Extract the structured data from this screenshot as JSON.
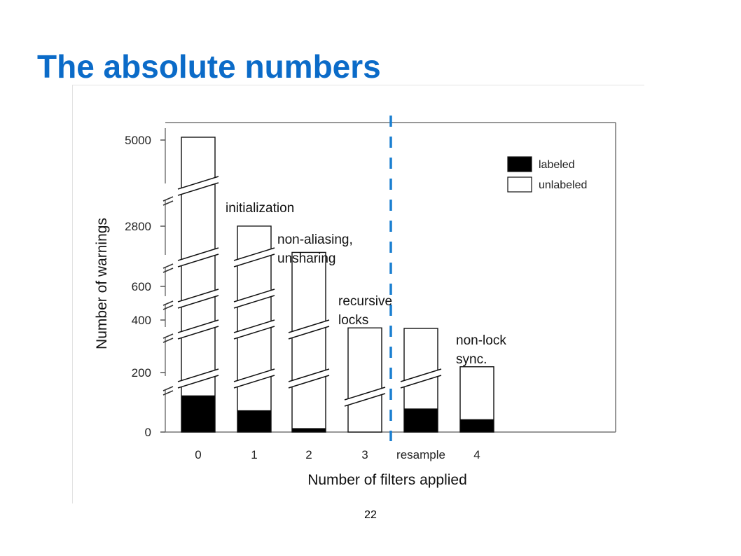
{
  "slide": {
    "title": "The absolute numbers",
    "page_number": "22"
  },
  "colors": {
    "title": "#0b6bc8",
    "divider": "#1a7fd0",
    "labeled": "#000000",
    "unlabeled": "#ffffff"
  },
  "chart_data": {
    "type": "bar",
    "stacked": true,
    "title": "",
    "xlabel": "Number of filters applied",
    "ylabel": "Number of warnings",
    "categories": [
      "0",
      "1",
      "2",
      "3",
      "resample",
      "4"
    ],
    "y_axis": {
      "broken": true,
      "tick_labels": [
        "0",
        "200",
        "400",
        "600",
        "2800",
        "5000"
      ]
    },
    "series": [
      {
        "name": "labeled",
        "values": [
          122,
          72,
          12,
          0,
          78,
          42
        ]
      },
      {
        "name": "unlabeled",
        "values": [
          4950,
          2730,
          1830,
          370,
          290,
          180
        ]
      }
    ],
    "totals": [
      5072,
      2802,
      1842,
      370,
      368,
      222
    ],
    "legend": {
      "position": "top-right",
      "entries": [
        "labeled",
        "unlabeled"
      ]
    },
    "annotations": [
      {
        "text_lines": [
          "initialization"
        ]
      },
      {
        "text_lines": [
          "non-aliasing,",
          "unsharing"
        ]
      },
      {
        "text_lines": [
          "recursive",
          "locks"
        ]
      },
      {
        "text_lines": [
          "non-lock",
          "sync."
        ]
      }
    ],
    "divider": {
      "style": "dashed",
      "between": [
        "3",
        "resample"
      ]
    },
    "grid": false
  }
}
